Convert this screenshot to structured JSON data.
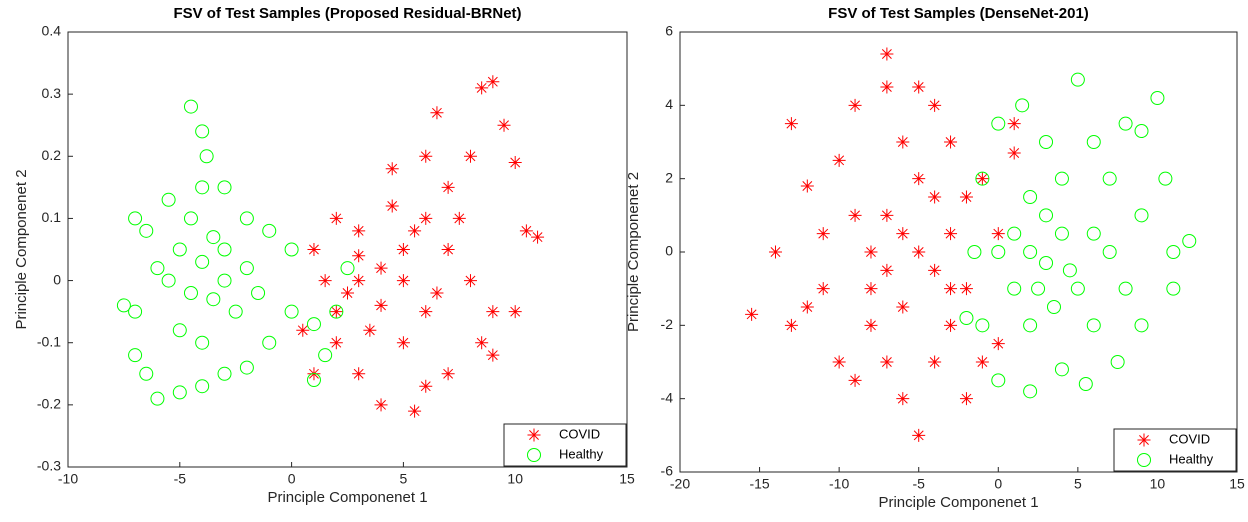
{
  "chart_data": [
    {
      "type": "scatter",
      "title": "FSV of Test Samples (Proposed Residual-BRNet)",
      "x_label": "Principle Componenet 1",
      "y_label": "Principle Componenet 2",
      "xlim": [
        -10,
        15
      ],
      "ylim": [
        -0.3,
        0.4
      ],
      "xticks": [
        -10,
        -5,
        0,
        5,
        10,
        15
      ],
      "yticks": [
        -0.3,
        -0.2,
        -0.1,
        0,
        0.1,
        0.2,
        0.3,
        0.4
      ],
      "grid": false,
      "legend": "lower right",
      "series": [
        {
          "name": "COVID",
          "color": "#ff0000",
          "marker": "asterisk",
          "x": [
            4,
            3,
            5,
            2,
            3.5,
            6,
            7,
            8,
            8.5,
            9,
            9.5,
            10,
            10.5,
            11,
            10,
            9,
            7,
            6,
            5.5,
            4,
            3,
            1,
            0.5,
            1,
            2,
            3,
            4.5,
            5,
            6,
            6.5,
            7.5,
            8,
            9,
            2.5,
            4,
            5,
            6,
            3,
            1.5,
            7,
            8.5,
            4.5,
            2,
            6.5,
            5.5
          ],
          "y": [
            0.02,
            0,
            0.05,
            -0.05,
            -0.08,
            0.1,
            0.15,
            0.2,
            0.31,
            0.32,
            0.25,
            0.19,
            0.08,
            0.07,
            -0.05,
            -0.12,
            -0.15,
            -0.17,
            -0.21,
            -0.2,
            -0.15,
            -0.15,
            -0.08,
            0.05,
            0.1,
            0.08,
            0.12,
            -0.1,
            0.2,
            0.27,
            0.1,
            0,
            -0.05,
            -0.02,
            -0.04,
            0,
            -0.05,
            0.04,
            0,
            0.05,
            -0.1,
            0.18,
            -0.1,
            -0.02,
            0.08
          ]
        },
        {
          "name": "Healthy",
          "color": "#00ff00",
          "marker": "circle",
          "x": [
            -4,
            -3.5,
            -4.5,
            -5,
            -3,
            -6,
            -7,
            -7.5,
            -7,
            -6.5,
            -6,
            -5,
            -4,
            -3,
            -2,
            -1,
            0,
            1,
            2,
            2.5,
            1.5,
            0,
            -1,
            -2,
            -3,
            -4,
            -4.5,
            -4,
            -3.8,
            -5.5,
            -6.5,
            -5,
            -4,
            -2.5,
            -3,
            -3.5,
            -4.5,
            -2,
            -5.5,
            -1.5,
            1,
            -7
          ],
          "y": [
            0.03,
            0.07,
            -0.02,
            0.05,
            0,
            0.02,
            -0.05,
            -0.04,
            0.1,
            -0.15,
            -0.19,
            -0.18,
            -0.17,
            -0.15,
            -0.14,
            -0.1,
            -0.05,
            -0.07,
            -0.05,
            0.02,
            -0.12,
            0.05,
            0.08,
            0.1,
            0.15,
            0.15,
            0.28,
            0.24,
            0.2,
            0.13,
            0.08,
            -0.08,
            -0.1,
            -0.05,
            0.05,
            -0.03,
            0.1,
            0.02,
            0,
            -0.02,
            -0.16,
            -0.12
          ]
        }
      ]
    },
    {
      "type": "scatter",
      "title": "FSV of Test Samples (DenseNet-201)",
      "x_label": "Principle Componenet 1",
      "y_label": "Principle Componenet 2",
      "xlim": [
        -20,
        15
      ],
      "ylim": [
        -6,
        6
      ],
      "xticks": [
        -20,
        -15,
        -10,
        -5,
        0,
        5,
        10,
        15
      ],
      "yticks": [
        -6,
        -4,
        -2,
        0,
        2,
        4,
        6
      ],
      "grid": false,
      "legend": "lower right",
      "series": [
        {
          "name": "COVID",
          "color": "#ff0000",
          "marker": "asterisk",
          "x": [
            -5,
            -6,
            -4,
            -7,
            -3,
            -8,
            -2,
            -5,
            -6,
            -7,
            -7,
            -5,
            -4,
            -9,
            -10,
            -12,
            -13,
            -14,
            -15.5,
            -13,
            -11,
            -10,
            -9,
            -8,
            -7,
            -6,
            -5,
            -4,
            -3,
            -2,
            -1,
            0,
            0,
            1,
            -1,
            -2,
            -3,
            -11,
            -9,
            -8,
            -6,
            -4,
            -12,
            -7,
            -3,
            1
          ],
          "y": [
            0,
            0.5,
            -0.5,
            1,
            0.5,
            -1,
            -1,
            2,
            3,
            4.5,
            5.4,
            4.5,
            4,
            4,
            2.5,
            1.8,
            3.5,
            0,
            -1.7,
            -2,
            -1,
            -3,
            -3.5,
            -2,
            -3,
            -4,
            -5,
            -3,
            -2,
            -4,
            -3,
            -2.5,
            0.5,
            2.7,
            2,
            1.5,
            3,
            0.5,
            1,
            0,
            -1.5,
            1.5,
            -1.5,
            -0.5,
            -1,
            3.5
          ]
        },
        {
          "name": "Healthy",
          "color": "#00ff00",
          "marker": "circle",
          "x": [
            3,
            2,
            4,
            1,
            5,
            3,
            2,
            6,
            7,
            8,
            9,
            10,
            10.5,
            11,
            12,
            11,
            9,
            7.5,
            5.5,
            4,
            2,
            0,
            -1,
            -2,
            -1.5,
            -1,
            0,
            1.5,
            3,
            5,
            6,
            4,
            2,
            1,
            3.5,
            8,
            9,
            6,
            0,
            4.5,
            2.5,
            7
          ],
          "y": [
            -0.3,
            0,
            0.5,
            -1,
            -1,
            1,
            -2,
            0.5,
            2,
            3.5,
            3.3,
            4.2,
            2,
            0,
            0.3,
            -1,
            -2,
            -3,
            -3.6,
            -3.2,
            -3.8,
            -3.5,
            -2,
            -1.8,
            0,
            2,
            3.5,
            4,
            3,
            4.7,
            3,
            2,
            1.5,
            0.5,
            -1.5,
            -1,
            1,
            -2,
            0,
            -0.5,
            -1,
            0
          ]
        }
      ]
    }
  ]
}
